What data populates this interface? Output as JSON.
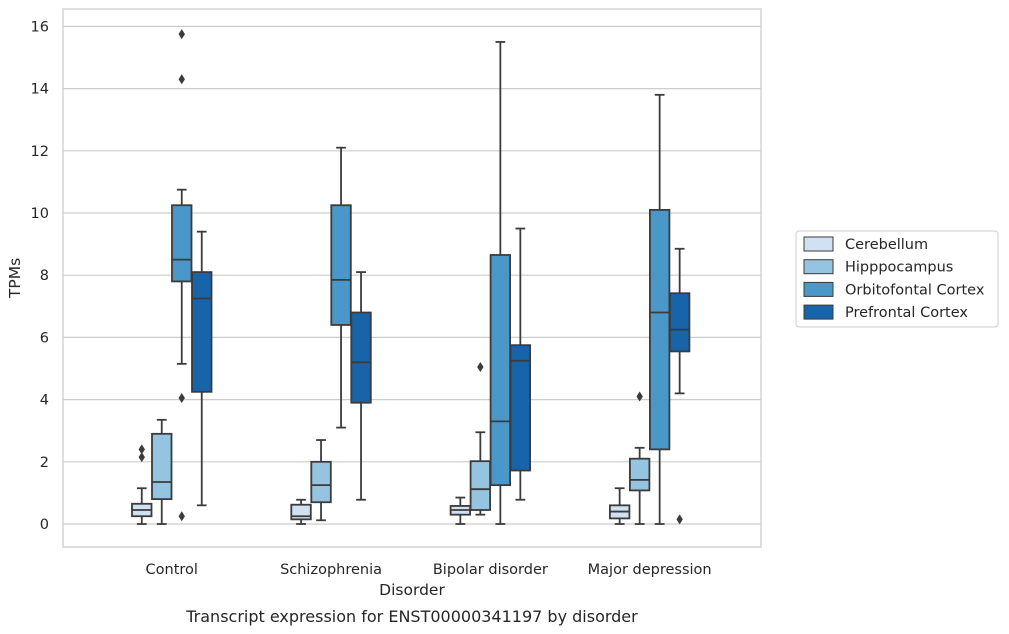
{
  "caption": "Transcript expression for ENST00000341197 by disorder",
  "chart_data": {
    "type": "box",
    "xlabel": "Disorder",
    "ylabel": "TPMs",
    "ylim": [
      -0.75,
      16.6
    ],
    "yticks": [
      0,
      2,
      4,
      6,
      8,
      10,
      12,
      14,
      16
    ],
    "grid": true,
    "legend_position": "right",
    "categories": [
      "Control",
      "Schizophrenia",
      "Bipolar disorder",
      "Major depression"
    ],
    "series": [
      {
        "name": "Cerebellum",
        "color": "#d0e1f2",
        "boxes": [
          {
            "whisker_low": 0.0,
            "q1": 0.25,
            "median": 0.45,
            "q3": 0.65,
            "whisker_high": 1.15,
            "outliers": [
              2.15,
              2.4
            ]
          },
          {
            "whisker_low": 0.0,
            "q1": 0.15,
            "median": 0.25,
            "q3": 0.62,
            "whisker_high": 0.78,
            "outliers": []
          },
          {
            "whisker_low": 0.0,
            "q1": 0.3,
            "median": 0.45,
            "q3": 0.58,
            "whisker_high": 0.85,
            "outliers": []
          },
          {
            "whisker_low": 0.0,
            "q1": 0.18,
            "median": 0.4,
            "q3": 0.6,
            "whisker_high": 1.15,
            "outliers": []
          }
        ]
      },
      {
        "name": "Hipppocampus",
        "color": "#94c4df",
        "boxes": [
          {
            "whisker_low": 0.0,
            "q1": 0.8,
            "median": 1.35,
            "q3": 2.9,
            "whisker_high": 3.35,
            "outliers": []
          },
          {
            "whisker_low": 0.12,
            "q1": 0.7,
            "median": 1.25,
            "q3": 2.0,
            "whisker_high": 2.7,
            "outliers": []
          },
          {
            "whisker_low": 0.3,
            "q1": 0.45,
            "median": 1.12,
            "q3": 2.02,
            "whisker_high": 2.95,
            "outliers": [
              5.05
            ]
          },
          {
            "whisker_low": 0.0,
            "q1": 1.08,
            "median": 1.42,
            "q3": 2.1,
            "whisker_high": 2.45,
            "outliers": [
              4.1
            ]
          }
        ]
      },
      {
        "name": "Orbitofontal Cortex",
        "color": "#4a98c9",
        "boxes": [
          {
            "whisker_low": 5.15,
            "q1": 7.8,
            "median": 8.5,
            "q3": 10.25,
            "whisker_high": 10.75,
            "outliers": [
              4.05,
              0.25,
              14.3,
              15.75
            ]
          },
          {
            "whisker_low": 3.1,
            "q1": 6.4,
            "median": 7.85,
            "q3": 10.25,
            "whisker_high": 12.1,
            "outliers": []
          },
          {
            "whisker_low": 0.0,
            "q1": 1.25,
            "median": 3.3,
            "q3": 8.65,
            "whisker_high": 15.5,
            "outliers": []
          },
          {
            "whisker_low": 0.0,
            "q1": 2.4,
            "median": 6.8,
            "q3": 10.1,
            "whisker_high": 13.8,
            "outliers": []
          }
        ]
      },
      {
        "name": "Prefrontal Cortex",
        "color": "#1764ab",
        "boxes": [
          {
            "whisker_low": 0.6,
            "q1": 4.25,
            "median": 7.25,
            "q3": 8.1,
            "whisker_high": 9.4,
            "outliers": []
          },
          {
            "whisker_low": 0.78,
            "q1": 3.9,
            "median": 5.2,
            "q3": 6.8,
            "whisker_high": 8.1,
            "outliers": []
          },
          {
            "whisker_low": 0.78,
            "q1": 1.72,
            "median": 5.25,
            "q3": 5.75,
            "whisker_high": 9.5,
            "outliers": []
          },
          {
            "whisker_low": 4.2,
            "q1": 5.55,
            "median": 6.25,
            "q3": 7.42,
            "whisker_high": 8.85,
            "outliers": [
              0.15
            ]
          }
        ]
      }
    ]
  }
}
